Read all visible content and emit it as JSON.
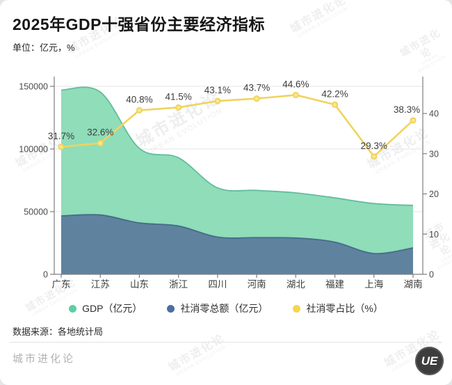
{
  "header": {
    "title": "2025年GDP十强省份主要经济指标",
    "unit": "单位：亿元，%"
  },
  "chart_data": {
    "type": "combo-area-line",
    "categories": [
      "广东",
      "江苏",
      "山东",
      "浙江",
      "四川",
      "河南",
      "湖北",
      "福建",
      "上海",
      "湖南"
    ],
    "series": [
      {
        "name": "GDP（亿元）",
        "type": "area",
        "y_axis": "left",
        "fill_color": "#8adcb6",
        "edge_color": "#54b493",
        "values": [
          147000,
          145500,
          100500,
          93000,
          69000,
          67000,
          65000,
          61000,
          56500,
          55000
        ]
      },
      {
        "name": "社消零总额（亿元）",
        "type": "area",
        "y_axis": "left",
        "fill_color": "#5d7e9e",
        "edge_color": "#3f6284",
        "values": [
          46600,
          47400,
          41000,
          38600,
          29700,
          29300,
          29000,
          25700,
          16600,
          21100
        ]
      },
      {
        "name": "社消零占比（%）",
        "type": "line",
        "y_axis": "right",
        "line_color": "#f0d35e",
        "point_fill": "#f9e88c",
        "values": [
          31.7,
          32.6,
          40.8,
          41.5,
          43.1,
          43.7,
          44.6,
          42.2,
          29.3,
          38.3
        ],
        "point_labels": [
          "31.7%",
          "32.6%",
          "40.8%",
          "41.5%",
          "43.1%",
          "43.7%",
          "44.6%",
          "42.2%",
          "29.3%",
          "38.3%"
        ]
      }
    ],
    "left_axis": {
      "min": 0,
      "max": 150000,
      "tick_step": 50000,
      "tick_labels": [
        "0",
        "50000",
        "100000",
        "150000"
      ]
    },
    "right_axis": {
      "min": 0,
      "tick_step": 10,
      "tick_labels": [
        "0",
        "10",
        "20",
        "30",
        "40"
      ]
    },
    "grid": true,
    "legend_position": "bottom",
    "label_color": "#3d3d3d",
    "axis_color": "#7d7d7d",
    "grid_color": "#e4e4e4",
    "tick_label_color": "#4a4a4a"
  },
  "legend": {
    "items": [
      {
        "label": "GDP（亿元）",
        "color": "#5ecfa2"
      },
      {
        "label": "社消零总额（亿元）",
        "color": "#4e6da0"
      },
      {
        "label": "社消零占比（%）",
        "color": "#f5d44e"
      }
    ]
  },
  "source": "数据来源：各地统计局",
  "footer": {
    "brand": "城市进化论",
    "logo": "UE"
  },
  "watermark": {
    "line1": "城市进化论",
    "line2": "URBAN EVOLUTION"
  }
}
